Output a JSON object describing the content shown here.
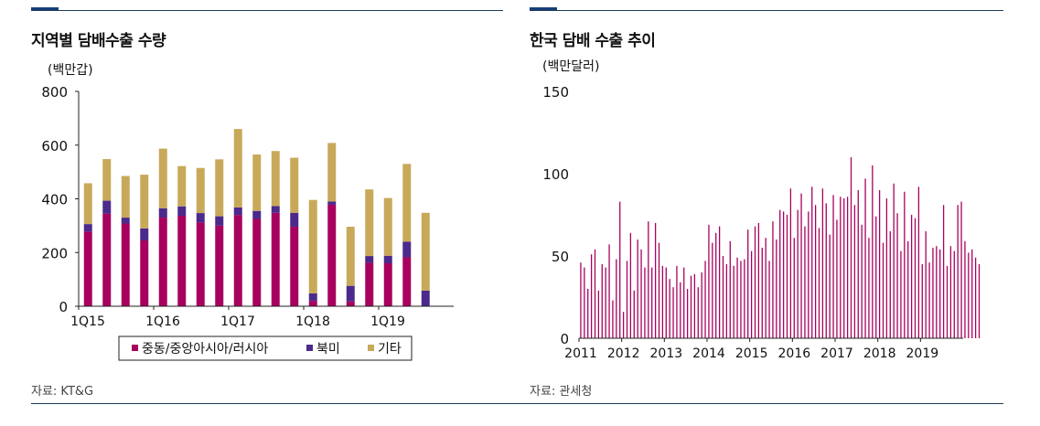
{
  "panels": {
    "left": {
      "title": "지역별 담배수출 수량",
      "unit": "(백만갑)",
      "source": "자료: KT&G"
    },
    "right": {
      "title": "한국 담배 수출 추이",
      "unit": "(백만달러)",
      "source": "자료:  관세청"
    }
  },
  "colors": {
    "navy": "#173e7a",
    "magenta": "#a8005e",
    "purple": "#4b2a8c",
    "gold": "#c8a95a",
    "monthly": "#a8005e"
  },
  "chart_data": [
    {
      "type": "bar",
      "stacked": true,
      "title": "지역별 담배수출 수량",
      "ylabel": "(백만갑)",
      "ylim": [
        0,
        800
      ],
      "yticks": [
        "0",
        "200",
        "400",
        "600",
        "800"
      ],
      "categories": [
        "1Q15",
        "2Q15",
        "3Q15",
        "4Q15",
        "1Q16",
        "2Q16",
        "3Q16",
        "4Q16",
        "1Q17",
        "2Q17",
        "3Q17",
        "4Q17",
        "1Q18",
        "2Q18",
        "3Q18",
        "4Q18",
        "1Q19",
        "2Q19",
        "3Q19",
        "4Q19"
      ],
      "xtick_labels": [
        "1Q15",
        "1Q16",
        "1Q17",
        "1Q18",
        "1Q19"
      ],
      "xtick_indices": [
        0,
        4,
        8,
        12,
        16
      ],
      "series": [
        {
          "name": "중동/중앙아시아/러시아",
          "color": "#a8005e",
          "values": [
            278,
            345,
            308,
            245,
            330,
            337,
            312,
            300,
            340,
            325,
            348,
            296,
            20,
            378,
            18,
            162,
            160,
            182,
            0,
            0
          ]
        },
        {
          "name": "북미",
          "color": "#4b2a8c",
          "values": [
            28,
            48,
            22,
            45,
            35,
            35,
            35,
            35,
            28,
            30,
            25,
            52,
            28,
            12,
            58,
            25,
            28,
            58,
            58,
            0
          ]
        },
        {
          "name": "기타",
          "color": "#c8a95a",
          "values": [
            152,
            155,
            155,
            200,
            222,
            150,
            168,
            212,
            292,
            210,
            205,
            205,
            348,
            218,
            220,
            248,
            215,
            290,
            290,
            0
          ]
        }
      ],
      "legend": [
        "중동/중앙아시아/러시아",
        "북미",
        "기타"
      ],
      "legend_position": "bottom"
    },
    {
      "type": "bar",
      "title": "한국 담배 수출 추이",
      "ylabel": "(백만달러)",
      "ylim": [
        0,
        150
      ],
      "yticks": [
        "0",
        "50",
        "100",
        "150"
      ],
      "x_start": "2011-01",
      "xtick_labels": [
        "2011",
        "2012",
        "2013",
        "2014",
        "2015",
        "2016",
        "2017",
        "2018",
        "2019"
      ],
      "values": [
        46,
        43,
        30,
        51,
        54,
        29,
        45,
        43,
        57,
        23,
        48,
        83,
        16,
        47,
        64,
        29,
        60,
        54,
        43,
        71,
        43,
        70,
        58,
        44,
        43,
        36,
        31,
        44,
        34,
        43,
        30,
        38,
        39,
        31,
        40,
        47,
        69,
        58,
        64,
        68,
        50,
        45,
        59,
        44,
        49,
        47,
        48,
        66,
        53,
        68,
        70,
        55,
        61,
        47,
        71,
        60,
        78,
        77,
        75,
        91,
        61,
        78,
        88,
        68,
        77,
        92,
        81,
        67,
        91,
        82,
        63,
        87,
        72,
        86,
        85,
        86,
        110,
        81,
        90,
        69,
        97,
        61,
        105,
        74,
        90,
        58,
        85,
        65,
        94,
        76,
        53,
        89,
        59,
        75,
        73,
        92,
        45,
        65,
        46,
        55,
        56,
        54,
        81,
        44,
        56,
        53,
        81,
        83,
        59,
        52,
        54,
        49,
        45
      ]
    }
  ]
}
